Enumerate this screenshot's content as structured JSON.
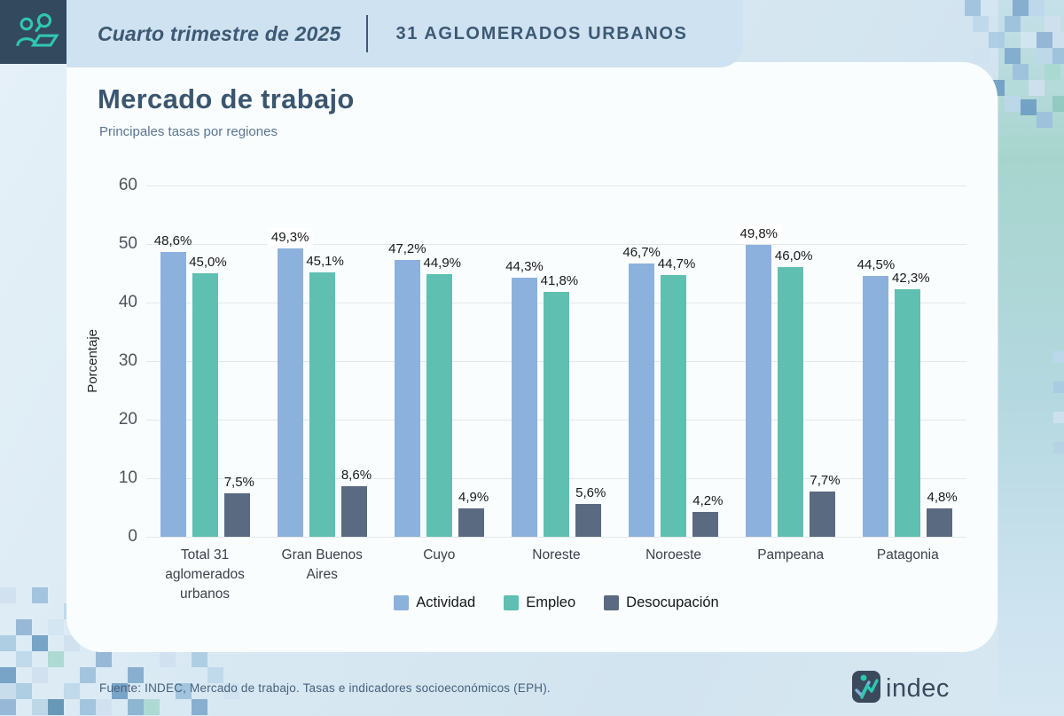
{
  "header": {
    "period": "Cuarto trimestre de 2025",
    "scope": "31 AGLOMERADOS URBANOS",
    "icon": "people-magnifier-icon"
  },
  "card": {
    "title": "Mercado de trabajo",
    "subtitle": "Principales tasas por regiones"
  },
  "chart_data": {
    "type": "bar",
    "title": "Mercado de trabajo",
    "subtitle": "Principales tasas por regiones",
    "xlabel": "",
    "ylabel": "Porcentaje",
    "ylim": [
      0,
      60
    ],
    "yticks": [
      0,
      10,
      20,
      30,
      40,
      50,
      60
    ],
    "grid": true,
    "legend_position": "bottom",
    "categories": [
      "Total 31 aglomerados urbanos",
      "Gran Buenos Aires",
      "Cuyo",
      "Noreste",
      "Noroeste",
      "Pampeana",
      "Patagonia"
    ],
    "series": [
      {
        "name": "Actividad",
        "color": "#8cb1dc",
        "values": [
          48.6,
          49.3,
          47.2,
          44.3,
          46.7,
          49.8,
          44.5
        ],
        "labels": [
          "48,6%",
          "49,3%",
          "47,2%",
          "44,3%",
          "46,7%",
          "49,8%",
          "44,5%"
        ]
      },
      {
        "name": "Empleo",
        "color": "#5fbfb0",
        "values": [
          45.0,
          45.1,
          44.9,
          41.8,
          44.7,
          46.0,
          42.3
        ],
        "labels": [
          "45,0%",
          "45,1%",
          "44,9%",
          "41,8%",
          "44,7%",
          "46,0%",
          "42,3%"
        ]
      },
      {
        "name": "Desocupación",
        "color": "#5a6a80",
        "values": [
          7.5,
          8.6,
          4.9,
          5.6,
          4.2,
          7.7,
          4.8
        ],
        "labels": [
          "7,5%",
          "8,6%",
          "4,9%",
          "5,6%",
          "4,2%",
          "7,7%",
          "4,8%"
        ]
      }
    ]
  },
  "footer": {
    "source": "Fuente: INDEC, Mercado de trabajo. Tasas e indicadores socioeconómicos (EPH).",
    "logo_text": "indec"
  },
  "colors": {
    "accent_teal": "#2fc7b2",
    "dark_slate": "#33495e",
    "header_bar": "#cfe2f1",
    "text_slate": "#3d5973"
  }
}
